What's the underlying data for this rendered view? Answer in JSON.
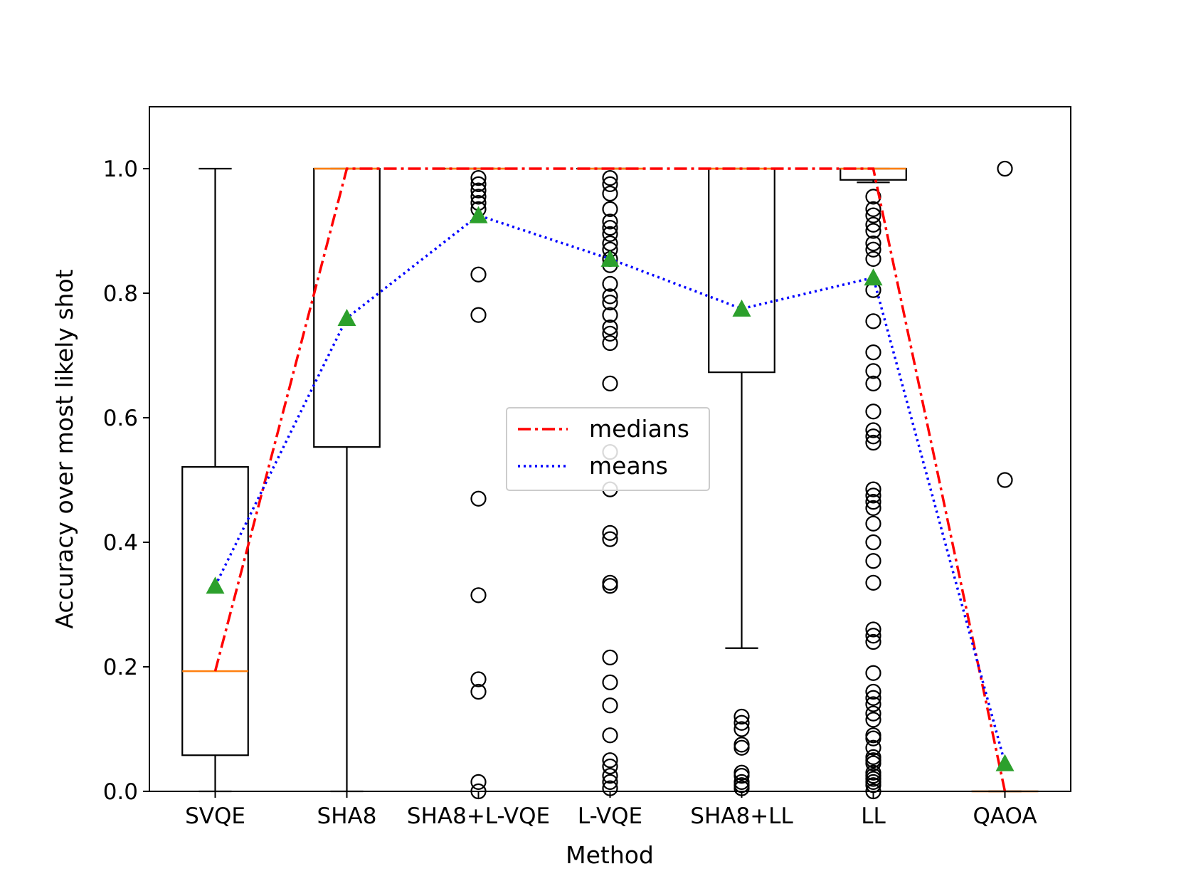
{
  "chart_data": {
    "type": "box",
    "xlabel": "Method",
    "ylabel": "Accuracy over most likely shot",
    "ylim": [
      0.0,
      1.1
    ],
    "yticks": [
      "0.0",
      "0.2",
      "0.4",
      "0.6",
      "0.8",
      "1.0"
    ],
    "categories": [
      "SVQE",
      "SHA8",
      "SHA8+L-VQE",
      "L-VQE",
      "SHA8+LL",
      "LL",
      "QAOA"
    ],
    "grid": false,
    "legend": {
      "placement": "center",
      "entries": [
        {
          "label": "medians",
          "color": "#ff0000",
          "style": "dashdot"
        },
        {
          "label": "means",
          "color": "#0000ff",
          "style": "dotted"
        }
      ]
    },
    "boxes": [
      {
        "whisker_low": 0.0,
        "q1": 0.058,
        "median": 0.193,
        "q3": 0.521,
        "whisker_high": 1.0,
        "mean": 0.33,
        "fliers": []
      },
      {
        "whisker_low": 0.0,
        "q1": 0.553,
        "median": 1.0,
        "q3": 1.0,
        "whisker_high": 1.0,
        "mean": 0.76,
        "fliers": []
      },
      {
        "whisker_low": 1.0,
        "q1": 1.0,
        "median": 1.0,
        "q3": 1.0,
        "whisker_high": 1.0,
        "mean": 0.925,
        "fliers": [
          0.985,
          0.975,
          0.965,
          0.955,
          0.945,
          0.935,
          0.83,
          0.765,
          0.47,
          0.315,
          0.18,
          0.16,
          0.015,
          0.0
        ]
      },
      {
        "whisker_low": 1.0,
        "q1": 1.0,
        "median": 1.0,
        "q3": 1.0,
        "whisker_high": 1.0,
        "mean": 0.855,
        "fliers": [
          0.985,
          0.975,
          0.96,
          0.935,
          0.915,
          0.905,
          0.895,
          0.88,
          0.87,
          0.855,
          0.845,
          0.815,
          0.795,
          0.785,
          0.765,
          0.745,
          0.735,
          0.72,
          0.655,
          0.545,
          0.485,
          0.415,
          0.405,
          0.335,
          0.33,
          0.215,
          0.175,
          0.138,
          0.09,
          0.05,
          0.04,
          0.025,
          0.015,
          0.005
        ]
      },
      {
        "whisker_low": 0.23,
        "q1": 0.673,
        "median": 1.0,
        "q3": 1.0,
        "whisker_high": 1.0,
        "mean": 0.775,
        "fliers": [
          0.12,
          0.11,
          0.1,
          0.075,
          0.07,
          0.03,
          0.025,
          0.015,
          0.01,
          0.005
        ]
      },
      {
        "whisker_low": 0.978,
        "q1": 0.982,
        "median": 1.0,
        "q3": 1.0,
        "whisker_high": 1.0,
        "mean": 0.825,
        "fliers": [
          0.955,
          0.935,
          0.925,
          0.91,
          0.9,
          0.88,
          0.87,
          0.855,
          0.805,
          0.755,
          0.705,
          0.675,
          0.655,
          0.61,
          0.58,
          0.57,
          0.56,
          0.485,
          0.475,
          0.465,
          0.455,
          0.43,
          0.4,
          0.37,
          0.335,
          0.26,
          0.25,
          0.24,
          0.19,
          0.16,
          0.15,
          0.14,
          0.125,
          0.115,
          0.09,
          0.085,
          0.07,
          0.055,
          0.05,
          0.045,
          0.03,
          0.025,
          0.02,
          0.015,
          0.01,
          0.0
        ]
      },
      {
        "whisker_low": 0.0,
        "q1": 0.0,
        "median": 0.0,
        "q3": 0.0,
        "whisker_high": 0.0,
        "mean": 0.045,
        "fliers": [
          1.0,
          0.5
        ]
      }
    ]
  },
  "colors": {
    "box": "#000000",
    "median_line": "#ff7f0e",
    "mean_marker": "#2ca02c",
    "medians_series": "#ff0000",
    "means_series": "#0000ff"
  }
}
